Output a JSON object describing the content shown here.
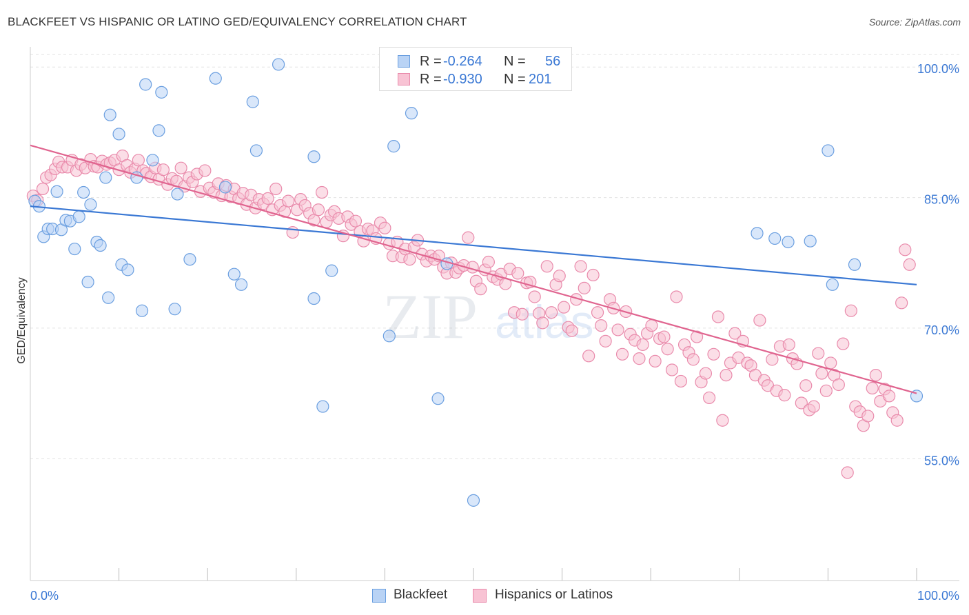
{
  "title": "BLACKFEET VS HISPANIC OR LATINO GED/EQUIVALENCY CORRELATION CHART",
  "source": "Source: ZipAtlas.com",
  "watermark": {
    "zip": "ZIP",
    "atlas": "atlas"
  },
  "legend": {
    "r_label": "R =",
    "n_label": "N =",
    "series": [
      {
        "name": "Blackfeet",
        "r": "-0.264",
        "n": "56",
        "fill": "#b9d3f5",
        "stroke": "#6b9fe0"
      },
      {
        "name": "Hispanics or Latinos",
        "r": "-0.930",
        "n": "201",
        "fill": "#f8c3d4",
        "stroke": "#e98aab"
      }
    ]
  },
  "chart_data": {
    "type": "scatter",
    "title": "BLACKFEET VS HISPANIC OR LATINO GED/EQUIVALENCY CORRELATION CHART",
    "xlabel": "",
    "ylabel": "GED/Equivalency",
    "xlim": [
      0,
      100
    ],
    "ylim": [
      41,
      102
    ],
    "x_tick_labels": [
      "0.0%",
      "100.0%"
    ],
    "y_ticks": [
      55,
      70,
      85,
      100
    ],
    "y_tick_labels": [
      "55.0%",
      "70.0%",
      "85.0%",
      "100.0%"
    ],
    "grid": true,
    "colors": {
      "blackfeet_line": "#3a78d4",
      "hispanic_line": "#e0648f",
      "tick_text": "#3a78d4"
    },
    "series": [
      {
        "name": "Blackfeet",
        "trend": {
          "x": [
            0,
            100
          ],
          "y": [
            84.0,
            75.0
          ]
        },
        "points": [
          [
            0.5,
            84.6
          ],
          [
            1.0,
            84.0
          ],
          [
            1.5,
            80.5
          ],
          [
            2.0,
            81.4
          ],
          [
            2.5,
            81.4
          ],
          [
            3.0,
            85.7
          ],
          [
            3.5,
            81.3
          ],
          [
            4.0,
            82.4
          ],
          [
            4.5,
            82.3
          ],
          [
            5.0,
            79.1
          ],
          [
            5.5,
            82.8
          ],
          [
            6.0,
            85.6
          ],
          [
            6.5,
            75.3
          ],
          [
            6.8,
            84.2
          ],
          [
            7.5,
            79.9
          ],
          [
            7.9,
            79.5
          ],
          [
            8.5,
            87.3
          ],
          [
            8.8,
            73.5
          ],
          [
            9.0,
            94.5
          ],
          [
            10.0,
            92.3
          ],
          [
            10.3,
            77.3
          ],
          [
            11.0,
            76.7
          ],
          [
            12.0,
            87.3
          ],
          [
            12.6,
            72.0
          ],
          [
            13.0,
            98.0
          ],
          [
            13.8,
            89.3
          ],
          [
            14.5,
            92.7
          ],
          [
            14.8,
            97.1
          ],
          [
            16.3,
            72.2
          ],
          [
            16.6,
            85.4
          ],
          [
            18.0,
            77.9
          ],
          [
            20.9,
            98.7
          ],
          [
            22.0,
            86.2
          ],
          [
            23.0,
            76.2
          ],
          [
            23.8,
            75.0
          ],
          [
            25.1,
            96.0
          ],
          [
            25.5,
            90.4
          ],
          [
            28.0,
            100.3
          ],
          [
            32.0,
            89.7
          ],
          [
            32.0,
            73.4
          ],
          [
            33.0,
            61.0
          ],
          [
            34.0,
            76.6
          ],
          [
            40.5,
            69.1
          ],
          [
            41.0,
            90.9
          ],
          [
            43.0,
            94.7
          ],
          [
            46.0,
            61.9
          ],
          [
            47.0,
            77.4
          ],
          [
            50.0,
            50.2
          ],
          [
            82.0,
            80.9
          ],
          [
            84.0,
            80.3
          ],
          [
            85.5,
            79.9
          ],
          [
            88.0,
            80.0
          ],
          [
            90.0,
            90.4
          ],
          [
            90.5,
            75.0
          ],
          [
            93.0,
            77.3
          ],
          [
            100.0,
            62.2
          ]
        ]
      },
      {
        "name": "Hispanics or Latinos",
        "trend": {
          "x": [
            0,
            100
          ],
          "y": [
            91.0,
            62.5
          ]
        },
        "points": [
          [
            0.3,
            85.2
          ],
          [
            0.8,
            84.7
          ],
          [
            1.4,
            86.0
          ],
          [
            1.8,
            87.3
          ],
          [
            2.3,
            87.6
          ],
          [
            2.8,
            88.3
          ],
          [
            3.2,
            89.1
          ],
          [
            3.6,
            88.5
          ],
          [
            4.2,
            88.5
          ],
          [
            4.7,
            89.3
          ],
          [
            5.2,
            88.1
          ],
          [
            5.7,
            88.8
          ],
          [
            6.2,
            88.4
          ],
          [
            6.8,
            89.4
          ],
          [
            7.2,
            88.6
          ],
          [
            7.6,
            88.5
          ],
          [
            8.1,
            89.2
          ],
          [
            8.6,
            88.8
          ],
          [
            9.0,
            89.0
          ],
          [
            9.5,
            89.3
          ],
          [
            10.0,
            88.2
          ],
          [
            10.4,
            89.8
          ],
          [
            10.9,
            88.7
          ],
          [
            11.3,
            87.9
          ],
          [
            11.8,
            88.3
          ],
          [
            12.2,
            89.3
          ],
          [
            12.7,
            88.1
          ],
          [
            13.1,
            87.8
          ],
          [
            13.6,
            87.4
          ],
          [
            14.1,
            88.4
          ],
          [
            14.5,
            87.1
          ],
          [
            15.0,
            88.2
          ],
          [
            15.5,
            86.5
          ],
          [
            16.0,
            87.2
          ],
          [
            16.5,
            86.9
          ],
          [
            17.0,
            88.4
          ],
          [
            17.4,
            86.3
          ],
          [
            17.9,
            87.3
          ],
          [
            18.3,
            86.8
          ],
          [
            18.8,
            87.7
          ],
          [
            19.2,
            85.7
          ],
          [
            19.7,
            88.1
          ],
          [
            20.2,
            86.1
          ],
          [
            20.7,
            85.6
          ],
          [
            21.2,
            86.6
          ],
          [
            21.6,
            85.2
          ],
          [
            22.1,
            86.4
          ],
          [
            22.6,
            85.1
          ],
          [
            23.0,
            86.0
          ],
          [
            23.5,
            84.9
          ],
          [
            24.0,
            85.5
          ],
          [
            24.4,
            84.2
          ],
          [
            24.9,
            85.3
          ],
          [
            25.4,
            83.8
          ],
          [
            25.8,
            84.8
          ],
          [
            26.3,
            84.3
          ],
          [
            26.8,
            84.9
          ],
          [
            27.3,
            83.6
          ],
          [
            27.7,
            86.0
          ],
          [
            28.2,
            84.1
          ],
          [
            28.7,
            83.4
          ],
          [
            29.1,
            84.6
          ],
          [
            29.6,
            81.0
          ],
          [
            30.1,
            83.6
          ],
          [
            30.5,
            84.8
          ],
          [
            31.0,
            84.1
          ],
          [
            31.5,
            83.2
          ],
          [
            32.0,
            82.4
          ],
          [
            32.5,
            83.6
          ],
          [
            32.9,
            85.6
          ],
          [
            33.4,
            82.2
          ],
          [
            33.9,
            83.0
          ],
          [
            34.3,
            83.4
          ],
          [
            34.8,
            82.6
          ],
          [
            35.3,
            80.6
          ],
          [
            35.8,
            82.8
          ],
          [
            36.2,
            81.9
          ],
          [
            36.7,
            82.3
          ],
          [
            37.2,
            81.1
          ],
          [
            37.6,
            80.0
          ],
          [
            38.1,
            81.4
          ],
          [
            38.6,
            81.2
          ],
          [
            39.0,
            80.3
          ],
          [
            39.5,
            82.1
          ],
          [
            40.0,
            81.5
          ],
          [
            40.5,
            79.7
          ],
          [
            40.9,
            78.3
          ],
          [
            41.4,
            79.9
          ],
          [
            41.9,
            78.2
          ],
          [
            42.3,
            79.1
          ],
          [
            42.8,
            77.9
          ],
          [
            43.3,
            79.3
          ],
          [
            43.7,
            80.1
          ],
          [
            44.2,
            78.5
          ],
          [
            44.7,
            77.7
          ],
          [
            45.2,
            78.3
          ],
          [
            45.6,
            77.9
          ],
          [
            46.1,
            78.3
          ],
          [
            46.6,
            77.0
          ],
          [
            47.0,
            76.3
          ],
          [
            47.5,
            77.5
          ],
          [
            48.0,
            76.4
          ],
          [
            48.4,
            76.9
          ],
          [
            48.9,
            77.2
          ],
          [
            49.4,
            80.4
          ],
          [
            49.9,
            77.0
          ],
          [
            50.3,
            75.4
          ],
          [
            50.8,
            74.5
          ],
          [
            51.3,
            76.7
          ],
          [
            51.7,
            77.6
          ],
          [
            52.2,
            75.9
          ],
          [
            52.7,
            75.6
          ],
          [
            53.1,
            76.2
          ],
          [
            53.6,
            75.1
          ],
          [
            54.1,
            76.8
          ],
          [
            54.6,
            71.8
          ],
          [
            55.0,
            76.3
          ],
          [
            55.5,
            71.6
          ],
          [
            56.0,
            75.2
          ],
          [
            56.4,
            75.3
          ],
          [
            56.9,
            73.6
          ],
          [
            57.4,
            71.7
          ],
          [
            57.8,
            70.6
          ],
          [
            58.3,
            77.1
          ],
          [
            58.8,
            71.8
          ],
          [
            59.3,
            75.0
          ],
          [
            59.7,
            76.0
          ],
          [
            60.2,
            72.4
          ],
          [
            60.7,
            70.1
          ],
          [
            61.1,
            69.7
          ],
          [
            61.6,
            73.3
          ],
          [
            62.1,
            77.1
          ],
          [
            62.5,
            74.6
          ],
          [
            63.0,
            66.8
          ],
          [
            63.5,
            76.1
          ],
          [
            64.0,
            71.8
          ],
          [
            64.4,
            70.3
          ],
          [
            64.9,
            68.5
          ],
          [
            65.4,
            73.3
          ],
          [
            65.8,
            72.3
          ],
          [
            66.3,
            69.8
          ],
          [
            66.8,
            67.0
          ],
          [
            67.2,
            71.9
          ],
          [
            67.7,
            69.3
          ],
          [
            68.2,
            68.6
          ],
          [
            68.7,
            66.5
          ],
          [
            69.1,
            68.1
          ],
          [
            69.6,
            69.4
          ],
          [
            70.1,
            70.3
          ],
          [
            70.5,
            66.2
          ],
          [
            71.0,
            68.8
          ],
          [
            71.5,
            69.0
          ],
          [
            71.9,
            67.6
          ],
          [
            72.4,
            65.2
          ],
          [
            72.9,
            73.6
          ],
          [
            73.4,
            63.9
          ],
          [
            73.8,
            68.1
          ],
          [
            74.3,
            67.2
          ],
          [
            74.8,
            66.4
          ],
          [
            75.2,
            69.0
          ],
          [
            75.7,
            63.8
          ],
          [
            76.2,
            64.8
          ],
          [
            76.6,
            62.0
          ],
          [
            77.1,
            67.0
          ],
          [
            77.6,
            71.3
          ],
          [
            78.1,
            59.4
          ],
          [
            78.5,
            64.6
          ],
          [
            79.0,
            66.0
          ],
          [
            79.5,
            69.4
          ],
          [
            79.9,
            66.6
          ],
          [
            80.4,
            68.5
          ],
          [
            80.9,
            66.0
          ],
          [
            81.3,
            65.7
          ],
          [
            81.8,
            64.6
          ],
          [
            82.3,
            70.9
          ],
          [
            82.8,
            64.0
          ],
          [
            83.2,
            63.4
          ],
          [
            83.7,
            66.4
          ],
          [
            84.2,
            62.8
          ],
          [
            84.6,
            67.9
          ],
          [
            85.1,
            62.3
          ],
          [
            85.6,
            68.1
          ],
          [
            86.0,
            66.5
          ],
          [
            86.5,
            65.9
          ],
          [
            87.0,
            61.4
          ],
          [
            87.5,
            63.4
          ],
          [
            87.9,
            60.6
          ],
          [
            88.4,
            61.0
          ],
          [
            88.9,
            67.1
          ],
          [
            89.3,
            64.8
          ],
          [
            89.8,
            62.8
          ],
          [
            90.3,
            66.0
          ],
          [
            90.7,
            64.6
          ],
          [
            91.2,
            63.5
          ],
          [
            91.7,
            68.2
          ],
          [
            92.2,
            53.4
          ],
          [
            92.6,
            72.0
          ],
          [
            93.1,
            61.0
          ],
          [
            93.6,
            60.4
          ],
          [
            94.0,
            58.8
          ],
          [
            94.5,
            59.9
          ],
          [
            95.0,
            63.1
          ],
          [
            95.4,
            64.6
          ],
          [
            95.9,
            61.6
          ],
          [
            96.4,
            63.0
          ],
          [
            96.9,
            62.2
          ],
          [
            97.3,
            60.3
          ],
          [
            97.8,
            59.4
          ],
          [
            98.3,
            72.9
          ],
          [
            98.7,
            79.0
          ],
          [
            99.2,
            77.3
          ]
        ]
      }
    ]
  }
}
